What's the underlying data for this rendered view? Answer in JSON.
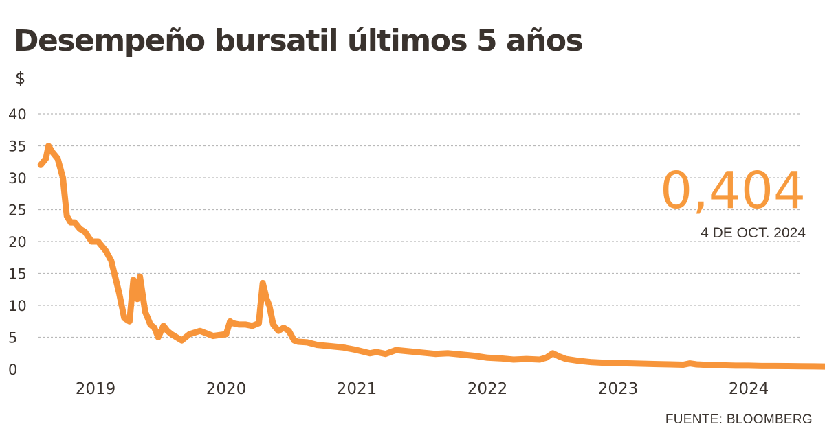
{
  "title": "Desempeño bursatil últimos 5 años",
  "unit_label": "$",
  "source": "FUENTE: BLOOMBERG",
  "colors": {
    "line": "#f7953b",
    "grid": "#b9b9b9",
    "text": "#3a332e",
    "callout": "#f79a3e"
  },
  "callout": {
    "value": "0,404",
    "date": "4 DE OCT. 2024"
  },
  "chart_data": {
    "type": "line",
    "title": "Desempeño bursatil últimos 5 años",
    "xlabel": "",
    "ylabel": "$",
    "ylim": [
      0,
      40
    ],
    "yticks": [
      0,
      5,
      10,
      15,
      20,
      25,
      30,
      35,
      40
    ],
    "xticks": [
      "2019",
      "2020",
      "2021",
      "2022",
      "2023",
      "2024"
    ],
    "grid": true,
    "legend": "none",
    "series": [
      {
        "x": [
          2018.58,
          2018.62,
          2018.64,
          2018.67,
          2018.71,
          2018.75,
          2018.78,
          2018.81,
          2018.84,
          2018.88,
          2018.92,
          2018.97,
          2019.02,
          2019.08,
          2019.12,
          2019.18,
          2019.22,
          2019.26,
          2019.29,
          2019.32,
          2019.34,
          2019.38,
          2019.4,
          2019.42,
          2019.45,
          2019.48,
          2019.52,
          2019.55,
          2019.58,
          2019.62,
          2019.66,
          2019.72,
          2019.8,
          2019.9,
          2020.0,
          2020.03,
          2020.05,
          2020.1,
          2020.15,
          2020.2,
          2020.25,
          2020.28,
          2020.31,
          2020.33,
          2020.36,
          2020.4,
          2020.44,
          2020.48,
          2020.52,
          2020.55,
          2020.62,
          2020.7,
          2020.8,
          2020.9,
          2021.0,
          2021.1,
          2021.15,
          2021.22,
          2021.3,
          2021.4,
          2021.5,
          2021.6,
          2021.7,
          2021.8,
          2021.9,
          2022.0,
          2022.1,
          2022.2,
          2022.3,
          2022.4,
          2022.45,
          2022.5,
          2022.55,
          2022.6,
          2022.7,
          2022.8,
          2022.9,
          2023.0,
          2023.1,
          2023.2,
          2023.3,
          2023.4,
          2023.5,
          2023.55,
          2023.6,
          2023.7,
          2023.8,
          2023.9,
          2024.0,
          2024.1,
          2024.2,
          2024.3,
          2024.4,
          2024.5,
          2024.6,
          2024.7,
          2024.76
        ],
        "y": [
          32.0,
          33.0,
          35.0,
          34.0,
          33.0,
          30.0,
          24.0,
          23.0,
          23.0,
          22.0,
          21.5,
          20.0,
          20.0,
          18.5,
          17.0,
          12.0,
          8.0,
          7.5,
          14.0,
          11.0,
          14.5,
          9.0,
          8.0,
          7.0,
          6.5,
          5.0,
          6.8,
          6.0,
          5.5,
          5.0,
          4.5,
          5.5,
          6.0,
          5.2,
          5.5,
          7.5,
          7.2,
          7.0,
          7.0,
          6.8,
          7.2,
          13.5,
          11.0,
          10.0,
          7.0,
          6.0,
          6.5,
          6.0,
          4.5,
          4.3,
          4.2,
          3.8,
          3.6,
          3.4,
          3.0,
          2.5,
          2.7,
          2.4,
          3.0,
          2.8,
          2.6,
          2.4,
          2.5,
          2.3,
          2.1,
          1.8,
          1.7,
          1.5,
          1.6,
          1.5,
          1.8,
          2.5,
          2.0,
          1.6,
          1.3,
          1.1,
          1.0,
          0.95,
          0.9,
          0.85,
          0.8,
          0.75,
          0.7,
          0.9,
          0.75,
          0.65,
          0.6,
          0.55,
          0.55,
          0.5,
          0.5,
          0.48,
          0.46,
          0.44,
          0.42,
          0.41,
          0.404
        ]
      }
    ]
  }
}
